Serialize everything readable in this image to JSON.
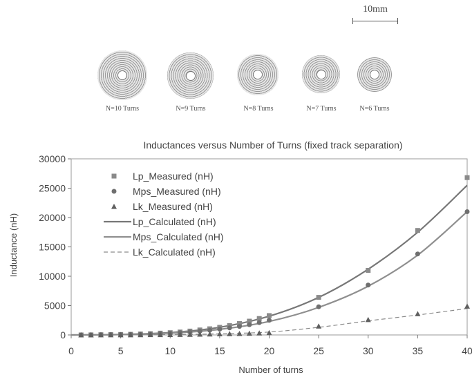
{
  "figure": {
    "scale_label": "10mm",
    "coils": [
      {
        "label": "N=10 Turns",
        "turns": 10
      },
      {
        "label": "N=9 Turns",
        "turns": 9
      },
      {
        "label": "N=8 Turns",
        "turns": 8
      },
      {
        "label": "N=7 Turns",
        "turns": 7
      },
      {
        "label": "N=6 Turns",
        "turns": 6
      }
    ]
  },
  "chart_data": {
    "type": "line",
    "title": "Inductances versus Number of Turns (fixed track separation)",
    "xlabel": "Number of turns",
    "ylabel": "Inductance (nH)",
    "xlim": [
      0,
      40
    ],
    "ylim": [
      0,
      30000
    ],
    "xticks": [
      0,
      5,
      10,
      15,
      20,
      25,
      30,
      35,
      40
    ],
    "yticks": [
      0,
      5000,
      10000,
      15000,
      20000,
      25000,
      30000
    ],
    "grid": false,
    "legend_position": "top-left",
    "measured_x": [
      1,
      2,
      3,
      4,
      5,
      6,
      7,
      8,
      9,
      10,
      11,
      12,
      13,
      14,
      15,
      16,
      17,
      18,
      19,
      20,
      25,
      30,
      35,
      40
    ],
    "series": [
      {
        "name": "Lp_Measured (nH)",
        "kind": "marker",
        "marker": "square",
        "color": "#8a8a8a",
        "values": [
          5,
          15,
          40,
          60,
          80,
          110,
          160,
          215,
          310,
          390,
          500,
          660,
          850,
          1050,
          1300,
          1600,
          1950,
          2350,
          2800,
          3300,
          6400,
          11000,
          17800,
          26800
        ]
      },
      {
        "name": "Mps_Measured (nH)",
        "kind": "marker",
        "marker": "circle",
        "color": "#6f6f6f",
        "values": [
          4,
          12,
          30,
          50,
          70,
          95,
          130,
          170,
          240,
          300,
          380,
          500,
          640,
          800,
          980,
          1200,
          1450,
          1750,
          2100,
          2500,
          4800,
          8500,
          13800,
          21000
        ]
      },
      {
        "name": "Lk_Measured (nH)",
        "kind": "marker",
        "marker": "triangle",
        "color": "#5f5f5f",
        "values": [
          1,
          3,
          8,
          12,
          15,
          20,
          28,
          38,
          48,
          60,
          75,
          95,
          115,
          140,
          170,
          200,
          240,
          280,
          330,
          380,
          1500,
          2600,
          3600,
          4900
        ]
      },
      {
        "name": "Lp_Calculated (nH)",
        "kind": "line",
        "style": "solid",
        "color": "#777777",
        "x": [
          0,
          5,
          10,
          15,
          20,
          25,
          30,
          35,
          40
        ],
        "values": [
          0,
          80,
          400,
          1300,
          3200,
          6400,
          11200,
          17500,
          25500
        ]
      },
      {
        "name": "Mps_Calculated (nH)",
        "kind": "line",
        "style": "solid",
        "color": "#8f8f8f",
        "x": [
          0,
          5,
          10,
          15,
          20,
          25,
          30,
          35,
          40
        ],
        "values": [
          0,
          65,
          300,
          950,
          2300,
          4700,
          8300,
          13600,
          21000
        ]
      },
      {
        "name": "Lk_Calculated (nH)",
        "kind": "line",
        "style": "dashed",
        "color": "#8a8a8a",
        "x": [
          0,
          5,
          10,
          15,
          20,
          25,
          30,
          35,
          40
        ],
        "values": [
          0,
          15,
          60,
          200,
          500,
          1300,
          2400,
          3400,
          4500
        ]
      }
    ]
  }
}
